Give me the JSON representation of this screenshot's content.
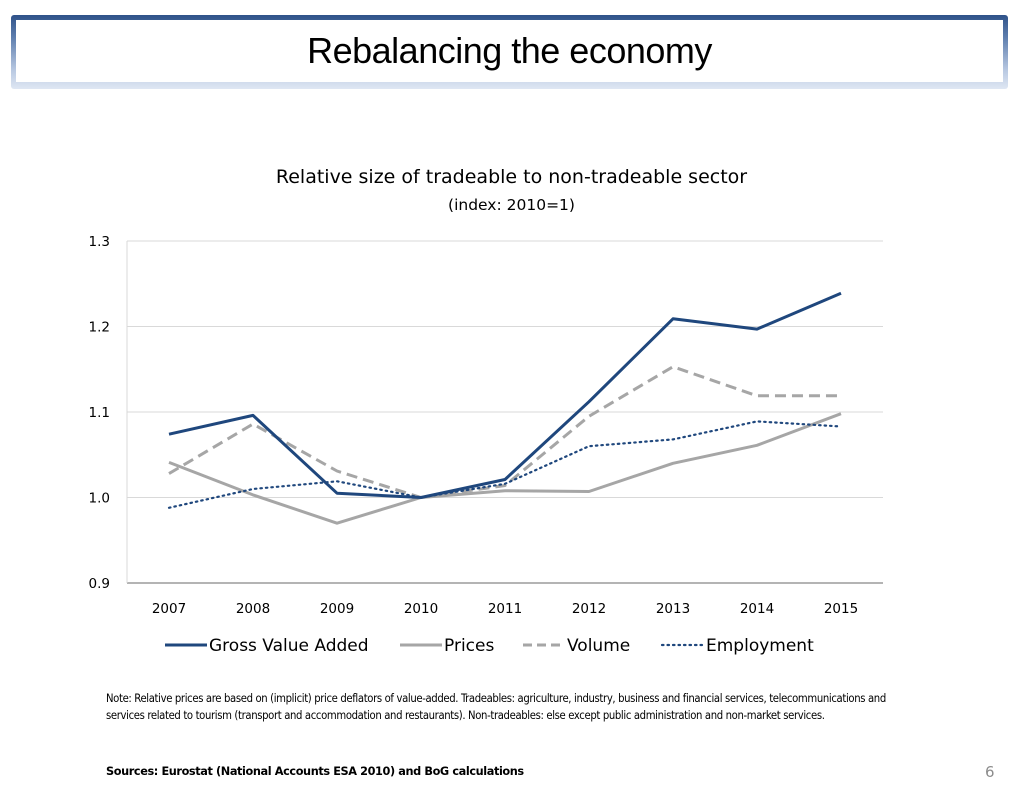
{
  "slide": {
    "title": "Rebalancing the economy",
    "note": "Note:  Relative prices are based on (implicit) price deflators of value-added. Tradeables: agriculture, industry, business and financial services, telecommunications and services related to tourism (transport and accommodation and restaurants).  Non-tradeables: else except public administration and non-market services.",
    "sources": "Sources: Eurostat (National Accounts ESA 2010) and BoG calculations",
    "page_number": "6"
  },
  "chart_data": {
    "type": "line",
    "title": "Relative size of tradeable to non-tradeable sector",
    "subtitle": "(index: 2010=1)",
    "xlabel": "",
    "ylabel": "",
    "categories": [
      "2007",
      "2008",
      "2009",
      "2010",
      "2011",
      "2012",
      "2013",
      "2014",
      "2015"
    ],
    "ylim": [
      0.9,
      1.3
    ],
    "yticks": [
      0.9,
      1.0,
      1.1,
      1.2,
      1.3
    ],
    "ytick_labels": [
      "0.9",
      "1.0",
      "1.1",
      "1.2",
      "1.3"
    ],
    "grid": true,
    "legend_position": "bottom",
    "series": [
      {
        "name": "Gross Value Added",
        "style": "solid",
        "color": "#1f477d",
        "values": [
          1.074,
          1.096,
          1.005,
          1.0,
          1.021,
          1.112,
          1.209,
          1.197,
          1.239
        ]
      },
      {
        "name": "Prices",
        "style": "solid",
        "color": "#a6a6a6",
        "values": [
          1.041,
          1.003,
          0.97,
          1.0,
          1.008,
          1.007,
          1.04,
          1.061,
          1.098
        ]
      },
      {
        "name": "Volume",
        "style": "dashed",
        "color": "#a6a6a6",
        "values": [
          1.028,
          1.086,
          1.031,
          1.0,
          1.014,
          1.095,
          1.153,
          1.119,
          1.119
        ]
      },
      {
        "name": "Employment",
        "style": "dotted",
        "color": "#1f477d",
        "values": [
          0.988,
          1.01,
          1.019,
          1.0,
          1.016,
          1.06,
          1.068,
          1.089,
          1.083
        ]
      }
    ]
  }
}
